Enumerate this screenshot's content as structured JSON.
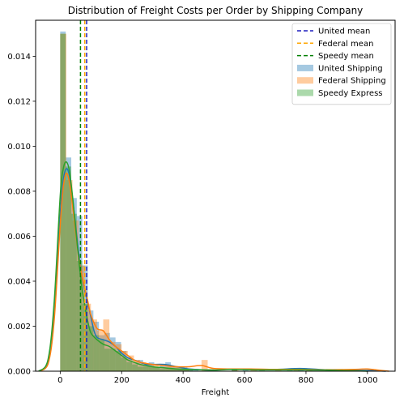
{
  "chart_data": {
    "type": "bar",
    "title": "Distribution of Freight Costs per Order by Shipping Company",
    "xlabel": "Freight",
    "ylabel": "",
    "xlim": [
      -80,
      1090
    ],
    "ylim": [
      0,
      0.0156
    ],
    "xticks": [
      0,
      200,
      400,
      600,
      800,
      1000
    ],
    "yticks": [
      0.0,
      0.002,
      0.004,
      0.006,
      0.008,
      0.01,
      0.012,
      0.014
    ],
    "ytick_labels": [
      "0.000",
      "0.002",
      "0.004",
      "0.006",
      "0.008",
      "0.010",
      "0.012",
      "0.014"
    ],
    "grid": false,
    "legend": {
      "placement": "top-right",
      "entries": [
        {
          "label": "United mean",
          "kind": "line",
          "color": "#1f1fbf"
        },
        {
          "label": "Federal mean",
          "kind": "line",
          "color": "#ffa500"
        },
        {
          "label": "Speedy mean",
          "kind": "line",
          "color": "#008000"
        },
        {
          "label": "United Shipping",
          "kind": "patch",
          "color": "#1f77b4"
        },
        {
          "label": "Federal Shipping",
          "kind": "patch",
          "color": "#ff7f0e"
        },
        {
          "label": "Speedy Express",
          "kind": "patch",
          "color": "#2ca02c"
        }
      ]
    },
    "means": [
      {
        "name": "United mean",
        "x": 86,
        "color": "#1f1fbf"
      },
      {
        "name": "Federal mean",
        "x": 80,
        "color": "#ffa500"
      },
      {
        "name": "Speedy mean",
        "x": 66,
        "color": "#008000"
      }
    ],
    "histograms": [
      {
        "name": "United Shipping",
        "color": "#1f77b4",
        "bin_width": 18,
        "bins": [
          [
            0,
            0.0151
          ],
          [
            18,
            0.0095
          ],
          [
            36,
            0.0077
          ],
          [
            54,
            0.0069
          ],
          [
            72,
            0.0047
          ],
          [
            90,
            0.0027
          ],
          [
            108,
            0.0022
          ],
          [
            126,
            0.0016
          ],
          [
            144,
            0.0017
          ],
          [
            162,
            0.0015
          ],
          [
            180,
            0.0013
          ],
          [
            198,
            0.0009
          ],
          [
            216,
            0.0006
          ],
          [
            234,
            0.0004
          ],
          [
            252,
            0.0005
          ],
          [
            270,
            0.0003
          ],
          [
            288,
            0.0004
          ],
          [
            306,
            0.0002
          ],
          [
            324,
            0.0003
          ],
          [
            342,
            0.0004
          ],
          [
            360,
            0.0002
          ],
          [
            378,
            0.0002
          ],
          [
            396,
            0.0002
          ],
          [
            414,
            0.0001
          ],
          [
            432,
            0.0001
          ],
          [
            558,
            0.0001
          ],
          [
            594,
            0.0001
          ],
          [
            774,
            0.0001
          ],
          [
            882,
            0.0001
          ]
        ]
      },
      {
        "name": "Federal Shipping",
        "color": "#ff7f0e",
        "bin_width": 20,
        "bins": [
          [
            0,
            0.015
          ],
          [
            20,
            0.0085
          ],
          [
            40,
            0.0067
          ],
          [
            60,
            0.0047
          ],
          [
            80,
            0.003
          ],
          [
            100,
            0.0023
          ],
          [
            120,
            0.0018
          ],
          [
            140,
            0.0023
          ],
          [
            160,
            0.0013
          ],
          [
            180,
            0.0012
          ],
          [
            200,
            0.0009
          ],
          [
            220,
            0.0007
          ],
          [
            240,
            0.0005
          ],
          [
            260,
            0.0004
          ],
          [
            280,
            0.0003
          ],
          [
            300,
            0.0003
          ],
          [
            320,
            0.0002
          ],
          [
            340,
            0.0002
          ],
          [
            360,
            0.0002
          ],
          [
            380,
            0.0002
          ],
          [
            400,
            0.0001
          ],
          [
            460,
            0.0005
          ],
          [
            480,
            0.0001
          ],
          [
            560,
            0.0001
          ],
          [
            620,
            0.0001
          ],
          [
            700,
            0.0001
          ],
          [
            760,
            0.0001
          ],
          [
            800,
            0.0001
          ],
          [
            900,
            0.0001
          ],
          [
            1000,
            0.0001
          ]
        ]
      },
      {
        "name": "Speedy Express",
        "color": "#2ca02c",
        "bin_width": 18,
        "bins": [
          [
            0,
            0.015
          ],
          [
            18,
            0.0091
          ],
          [
            36,
            0.007
          ],
          [
            54,
            0.0049
          ],
          [
            72,
            0.003
          ],
          [
            90,
            0.002
          ],
          [
            108,
            0.0016
          ],
          [
            126,
            0.0014
          ],
          [
            144,
            0.001
          ],
          [
            162,
            0.001
          ],
          [
            180,
            0.0009
          ],
          [
            198,
            0.0006
          ],
          [
            216,
            0.0004
          ],
          [
            234,
            0.0003
          ],
          [
            252,
            0.0002
          ],
          [
            270,
            0.0002
          ],
          [
            288,
            0.0002
          ],
          [
            306,
            0.0002
          ],
          [
            324,
            0.0001
          ],
          [
            342,
            0.0001
          ],
          [
            360,
            0.0001
          ],
          [
            378,
            0.0001
          ],
          [
            396,
            0.0001
          ],
          [
            414,
            0.0001
          ],
          [
            558,
            0.0001
          ],
          [
            648,
            0.0001
          ],
          [
            738,
            0.0001
          ],
          [
            864,
            0.0001
          ]
        ]
      }
    ],
    "kde": [
      {
        "name": "United Shipping",
        "color": "#1f77b4",
        "points": [
          [
            -70,
            0
          ],
          [
            -40,
            0.0004
          ],
          [
            -20,
            0.0025
          ],
          [
            0,
            0.007
          ],
          [
            10,
            0.0085
          ],
          [
            20,
            0.009
          ],
          [
            30,
            0.0087
          ],
          [
            40,
            0.0077
          ],
          [
            50,
            0.0065
          ],
          [
            60,
            0.0053
          ],
          [
            70,
            0.0043
          ],
          [
            80,
            0.0036
          ],
          [
            90,
            0.003
          ],
          [
            100,
            0.0024
          ],
          [
            110,
            0.0018
          ],
          [
            120,
            0.0015
          ],
          [
            140,
            0.0014
          ],
          [
            160,
            0.0013
          ],
          [
            180,
            0.0011
          ],
          [
            200,
            0.0008
          ],
          [
            220,
            0.0006
          ],
          [
            240,
            0.0005
          ],
          [
            260,
            0.0004
          ],
          [
            280,
            0.0003
          ],
          [
            300,
            0.0003
          ],
          [
            340,
            0.0003
          ],
          [
            380,
            0.0002
          ],
          [
            420,
            0.0001
          ],
          [
            500,
            5e-05
          ],
          [
            560,
            0.0001
          ],
          [
            620,
            8e-05
          ],
          [
            700,
            8e-05
          ],
          [
            780,
            0.00012
          ],
          [
            840,
            8e-05
          ],
          [
            900,
            5e-05
          ],
          [
            1000,
            3e-05
          ],
          [
            1060,
            0
          ]
        ]
      },
      {
        "name": "Federal Shipping",
        "color": "#ff7f0e",
        "points": [
          [
            -70,
            0
          ],
          [
            -40,
            0.0003
          ],
          [
            -20,
            0.0022
          ],
          [
            0,
            0.0065
          ],
          [
            10,
            0.0082
          ],
          [
            20,
            0.0088
          ],
          [
            30,
            0.0084
          ],
          [
            40,
            0.0074
          ],
          [
            50,
            0.0062
          ],
          [
            60,
            0.0051
          ],
          [
            70,
            0.0043
          ],
          [
            80,
            0.0037
          ],
          [
            90,
            0.0031
          ],
          [
            100,
            0.0025
          ],
          [
            120,
            0.0019
          ],
          [
            140,
            0.0018
          ],
          [
            160,
            0.0014
          ],
          [
            180,
            0.0011
          ],
          [
            200,
            0.0009
          ],
          [
            220,
            0.0007
          ],
          [
            240,
            0.0005
          ],
          [
            260,
            0.0004
          ],
          [
            300,
            0.0003
          ],
          [
            340,
            0.00025
          ],
          [
            380,
            0.0002
          ],
          [
            420,
            0.0002
          ],
          [
            460,
            0.00025
          ],
          [
            500,
            0.00012
          ],
          [
            560,
            0.0001
          ],
          [
            620,
            0.0001
          ],
          [
            700,
            8e-05
          ],
          [
            780,
            8e-05
          ],
          [
            860,
            6e-05
          ],
          [
            960,
            8e-05
          ],
          [
            1000,
            0.0001
          ],
          [
            1040,
            4e-05
          ],
          [
            1070,
            0
          ]
        ]
      },
      {
        "name": "Speedy Express",
        "color": "#2ca02c",
        "points": [
          [
            -70,
            0
          ],
          [
            -40,
            0.0005
          ],
          [
            -20,
            0.003
          ],
          [
            0,
            0.0078
          ],
          [
            10,
            0.009
          ],
          [
            20,
            0.0093
          ],
          [
            30,
            0.0089
          ],
          [
            40,
            0.0078
          ],
          [
            50,
            0.0064
          ],
          [
            60,
            0.005
          ],
          [
            70,
            0.0038
          ],
          [
            80,
            0.0029
          ],
          [
            90,
            0.0022
          ],
          [
            100,
            0.0017
          ],
          [
            120,
            0.0014
          ],
          [
            140,
            0.0012
          ],
          [
            160,
            0.0011
          ],
          [
            180,
            0.0009
          ],
          [
            200,
            0.0007
          ],
          [
            220,
            0.0005
          ],
          [
            240,
            0.0004
          ],
          [
            260,
            0.0003
          ],
          [
            300,
            0.0002
          ],
          [
            340,
            0.00015
          ],
          [
            380,
            0.0001
          ],
          [
            420,
            8e-05
          ],
          [
            500,
            5e-05
          ],
          [
            560,
            8e-05
          ],
          [
            640,
            6e-05
          ],
          [
            740,
            6e-05
          ],
          [
            860,
            5e-05
          ],
          [
            960,
            2e-05
          ],
          [
            1000,
            0
          ]
        ]
      }
    ]
  }
}
